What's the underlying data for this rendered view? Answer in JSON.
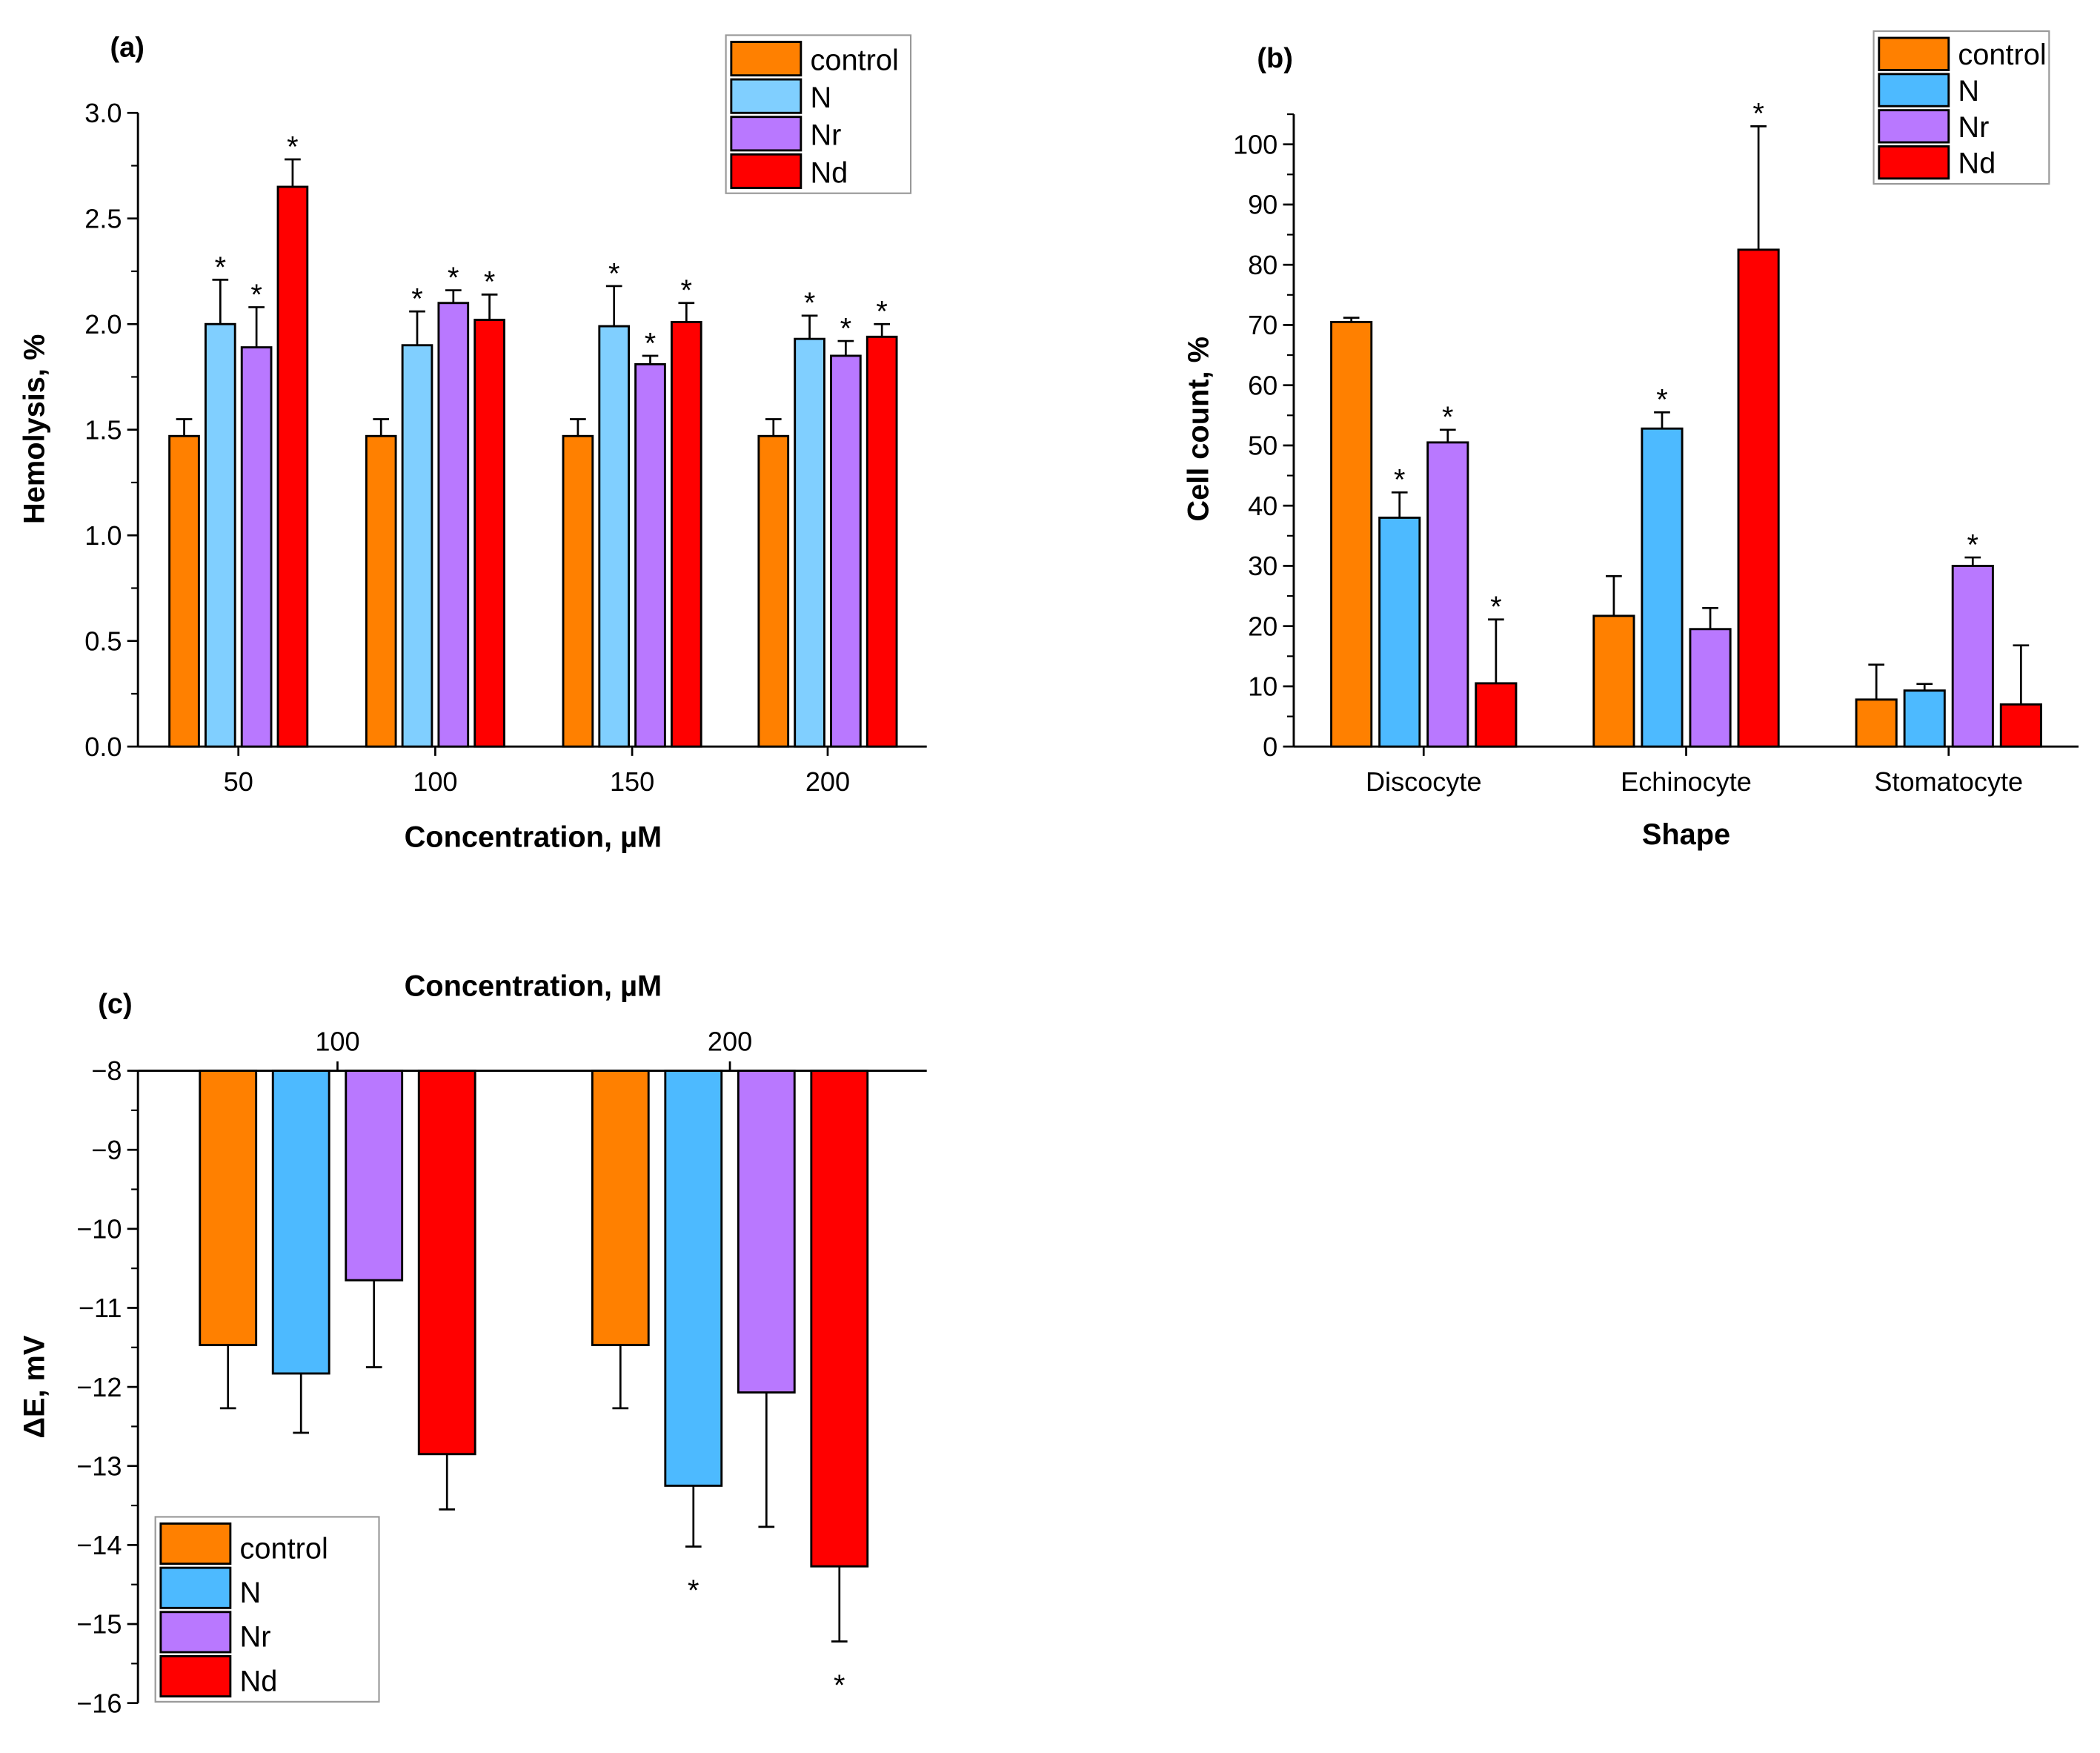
{
  "colors": {
    "control": "#FF8000",
    "N_a": "#80CFFF",
    "N": "#4DBAFF",
    "Nr": "#B978FF",
    "Nd": "#FF0000"
  },
  "chart_data": [
    {
      "panel": "(a)",
      "type": "bar",
      "xlabel": "Concentration, µM",
      "ylabel": "Hemolysis, %",
      "ylim": [
        0,
        3.0
      ],
      "yticks": [
        "0.0",
        "0.5",
        "1.0",
        "1.5",
        "2.0",
        "2.5",
        "3.0"
      ],
      "categories": [
        "50",
        "100",
        "150",
        "200"
      ],
      "legend": {
        "position": "top-right",
        "entries": [
          "control",
          "N",
          "Nr",
          "Nd"
        ]
      },
      "series": [
        {
          "name": "control",
          "values": [
            1.47,
            1.47,
            1.47,
            1.47
          ],
          "errors": [
            0.08,
            0.08,
            0.08,
            0.08
          ],
          "significant": [
            false,
            false,
            false,
            false
          ]
        },
        {
          "name": "N",
          "values": [
            2.0,
            1.9,
            1.99,
            1.93
          ],
          "errors": [
            0.21,
            0.16,
            0.19,
            0.11
          ],
          "significant": [
            true,
            true,
            true,
            true
          ]
        },
        {
          "name": "Nr",
          "values": [
            1.89,
            2.1,
            1.81,
            1.85
          ],
          "errors": [
            0.19,
            0.06,
            0.04,
            0.07
          ],
          "significant": [
            true,
            true,
            true,
            true
          ]
        },
        {
          "name": "Nd",
          "values": [
            2.65,
            2.02,
            2.01,
            1.94
          ],
          "errors": [
            0.13,
            0.12,
            0.09,
            0.06
          ],
          "significant": [
            true,
            true,
            true,
            true
          ]
        }
      ]
    },
    {
      "panel": "(b)",
      "type": "bar",
      "xlabel": "Shape",
      "ylabel": "Cell count, %",
      "ylim": [
        0,
        105
      ],
      "yticks": [
        "0",
        "10",
        "20",
        "30",
        "40",
        "50",
        "60",
        "70",
        "80",
        "90",
        "100"
      ],
      "categories": [
        "Discocyte",
        "Echinocyte",
        "Stomatocyte"
      ],
      "legend": {
        "position": "top-right",
        "entries": [
          "control",
          "N",
          "Nr",
          "Nd"
        ]
      },
      "series": [
        {
          "name": "control",
          "values": [
            70.5,
            21.7,
            7.8
          ],
          "errors": [
            0.7,
            6.6,
            5.8
          ],
          "significant": [
            false,
            false,
            false
          ]
        },
        {
          "name": "N",
          "values": [
            38.0,
            52.8,
            9.3
          ],
          "errors": [
            4.2,
            2.7,
            1.1
          ],
          "significant": [
            true,
            true,
            false
          ]
        },
        {
          "name": "Nr",
          "values": [
            50.5,
            19.5,
            30.0
          ],
          "errors": [
            2.1,
            3.5,
            1.4
          ],
          "significant": [
            true,
            false,
            true
          ]
        },
        {
          "name": "Nd",
          "values": [
            10.5,
            82.5,
            7.0
          ],
          "errors": [
            10.6,
            20.5,
            9.8
          ],
          "significant": [
            true,
            true,
            false
          ]
        }
      ]
    },
    {
      "panel": "(c)",
      "type": "bar",
      "xlabel": "Concentration, µM",
      "ylabel": "ΔE, mV",
      "ylim": [
        -16,
        -8
      ],
      "yticks": [
        "-8",
        "-9",
        "-10",
        "-11",
        "-12",
        "-13",
        "-14",
        "-15",
        "-16"
      ],
      "categories": [
        "100",
        "200"
      ],
      "legend": {
        "position": "bottom-left",
        "entries": [
          "control",
          "N",
          "Nr",
          "Nd"
        ]
      },
      "series": [
        {
          "name": "control",
          "values": [
            -11.47,
            -11.47
          ],
          "errors": [
            0.8,
            0.8
          ],
          "significant": [
            false,
            false
          ]
        },
        {
          "name": "N",
          "values": [
            -11.83,
            -13.25
          ],
          "errors": [
            0.75,
            0.77
          ],
          "significant": [
            false,
            true
          ]
        },
        {
          "name": "Nr",
          "values": [
            -10.65,
            -12.07
          ],
          "errors": [
            1.1,
            1.7
          ],
          "significant": [
            false,
            false
          ]
        },
        {
          "name": "Nd",
          "values": [
            -12.85,
            -14.27
          ],
          "errors": [
            0.7,
            0.95
          ],
          "significant": [
            false,
            true
          ]
        }
      ]
    }
  ],
  "star_symbol": "*"
}
